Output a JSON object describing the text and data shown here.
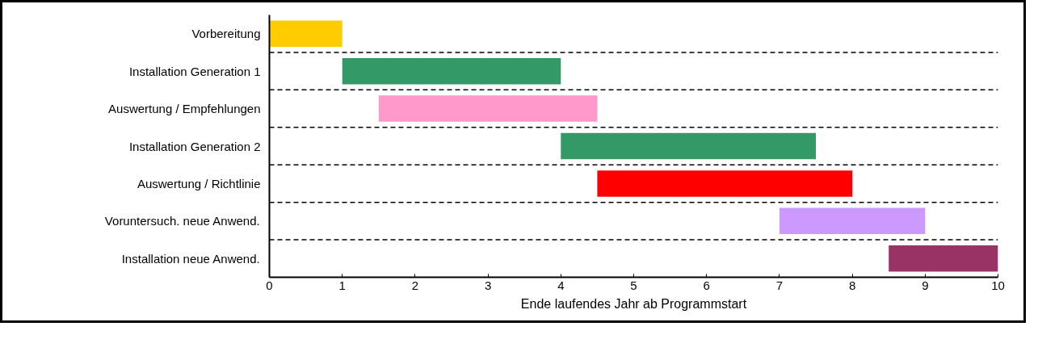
{
  "chart_data": {
    "type": "bar",
    "orientation": "horizontal",
    "xlabel": "Ende laufendes Jahr ab Programmstart",
    "categories": [
      "Vorbereitung",
      "Installation Generation 1",
      "Auswertung / Empfehlungen",
      "Installation Generation 2",
      "Auswertung / Richtlinie",
      "Voruntersuch. neue Anwend.",
      "Installation neue Anwend."
    ],
    "base": [
      0,
      1,
      1.5,
      4,
      4.5,
      7,
      8.5
    ],
    "values": [
      1,
      3,
      3,
      3.5,
      3.5,
      2,
      1.5
    ],
    "colors": [
      "#ffcc00",
      "#339966",
      "#ff99cc",
      "#339966",
      "#ff0000",
      "#cc99ff",
      "#993366"
    ],
    "xlim": [
      0,
      10
    ],
    "xticks": [
      0,
      1,
      2,
      3,
      4,
      5,
      6,
      7,
      8,
      9,
      10
    ],
    "grid": "y"
  }
}
